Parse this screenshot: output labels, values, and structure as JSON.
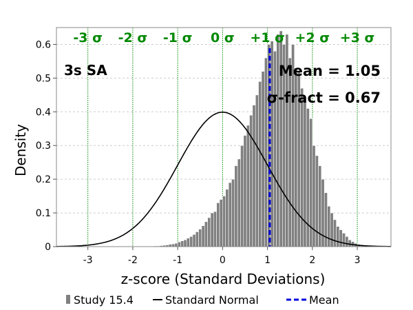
{
  "chart_data": {
    "type": "bar",
    "xlabel": "z-score (Standard Deviations)",
    "ylabel": "Density",
    "xlim": [
      -3.7,
      3.75
    ],
    "ylim": [
      0,
      0.65
    ],
    "x_ticks": [
      -3,
      -2,
      -1,
      0,
      1,
      2,
      3
    ],
    "x_tick_labels": [
      "-3",
      "-2",
      "-1",
      "0",
      "1",
      "2",
      "3"
    ],
    "y_ticks": [
      0,
      0.1,
      0.2,
      0.3,
      0.4,
      0.5,
      0.6
    ],
    "y_tick_labels": [
      "0",
      "0.1",
      "0.2",
      "0.3",
      "0.4",
      "0.5",
      "0.6"
    ],
    "grid": true,
    "sigma_lines": [
      -3,
      -2,
      -1,
      0,
      1,
      2,
      3
    ],
    "sigma_labels": [
      "-3 σ",
      "-2 σ",
      "-1 σ",
      "0 σ",
      "+1 σ",
      "+2 σ",
      "+3 σ"
    ],
    "annotations": {
      "scenario": "3s SA",
      "mean": "Mean = 1.05",
      "sigma_fract": "σ-fract = 0.67"
    },
    "mean_value": 1.05,
    "histogram": {
      "name": "Study 15.4",
      "bin_width": 0.0667,
      "bins": [
        [
          -1.7,
          0.0
        ],
        [
          -1.633,
          0.001
        ],
        [
          -1.567,
          0.001
        ],
        [
          -1.5,
          0.002
        ],
        [
          -1.433,
          0.002
        ],
        [
          -1.367,
          0.003
        ],
        [
          -1.3,
          0.004
        ],
        [
          -1.233,
          0.005
        ],
        [
          -1.167,
          0.007
        ],
        [
          -1.1,
          0.008
        ],
        [
          -1.033,
          0.01
        ],
        [
          -0.967,
          0.014
        ],
        [
          -0.9,
          0.017
        ],
        [
          -0.833,
          0.02
        ],
        [
          -0.767,
          0.025
        ],
        [
          -0.7,
          0.03
        ],
        [
          -0.633,
          0.036
        ],
        [
          -0.567,
          0.044
        ],
        [
          -0.5,
          0.052
        ],
        [
          -0.433,
          0.062
        ],
        [
          -0.367,
          0.074
        ],
        [
          -0.3,
          0.086
        ],
        [
          -0.233,
          0.1
        ],
        [
          -0.167,
          0.104
        ],
        [
          -0.1,
          0.13
        ],
        [
          -0.033,
          0.14
        ],
        [
          0.033,
          0.15
        ],
        [
          0.1,
          0.17
        ],
        [
          0.167,
          0.19
        ],
        [
          0.233,
          0.2
        ],
        [
          0.3,
          0.24
        ],
        [
          0.367,
          0.26
        ],
        [
          0.433,
          0.3
        ],
        [
          0.5,
          0.33
        ],
        [
          0.567,
          0.36
        ],
        [
          0.633,
          0.39
        ],
        [
          0.7,
          0.42
        ],
        [
          0.767,
          0.45
        ],
        [
          0.833,
          0.49
        ],
        [
          0.9,
          0.52
        ],
        [
          0.967,
          0.56
        ],
        [
          1.033,
          0.6
        ],
        [
          1.1,
          0.61
        ],
        [
          1.167,
          0.58
        ],
        [
          1.233,
          0.63
        ],
        [
          1.3,
          0.64
        ],
        [
          1.367,
          0.6
        ],
        [
          1.433,
          0.63
        ],
        [
          1.5,
          0.56
        ],
        [
          1.567,
          0.6
        ],
        [
          1.633,
          0.53
        ],
        [
          1.7,
          0.52
        ],
        [
          1.767,
          0.47
        ],
        [
          1.833,
          0.43
        ],
        [
          1.9,
          0.41
        ],
        [
          1.967,
          0.38
        ],
        [
          2.033,
          0.3
        ],
        [
          2.1,
          0.27
        ],
        [
          2.167,
          0.24
        ],
        [
          2.233,
          0.2
        ],
        [
          2.3,
          0.16
        ],
        [
          2.367,
          0.12
        ],
        [
          2.433,
          0.1
        ],
        [
          2.5,
          0.08
        ],
        [
          2.567,
          0.06
        ],
        [
          2.633,
          0.05
        ],
        [
          2.7,
          0.04
        ],
        [
          2.767,
          0.03
        ],
        [
          2.833,
          0.02
        ],
        [
          2.9,
          0.015
        ],
        [
          2.967,
          0.01
        ],
        [
          3.033,
          0.007
        ],
        [
          3.1,
          0.005
        ],
        [
          3.167,
          0.003
        ],
        [
          3.233,
          0.002
        ],
        [
          3.3,
          0.001
        ],
        [
          3.367,
          0.001
        ],
        [
          3.433,
          0.0
        ]
      ]
    },
    "curve": {
      "name": "Standard Normal",
      "mean": 0,
      "sd": 1
    },
    "legend": {
      "placement": "bottom",
      "entries": [
        "Study 15.4",
        "Standard Normal",
        "Mean"
      ]
    },
    "colors": {
      "bars": "#808080",
      "bar_edge": "#ffffff",
      "curve": "#000000",
      "mean": "#0000dd",
      "sigma": "#008800",
      "grid": "#cccccc",
      "text": "#000000"
    }
  }
}
